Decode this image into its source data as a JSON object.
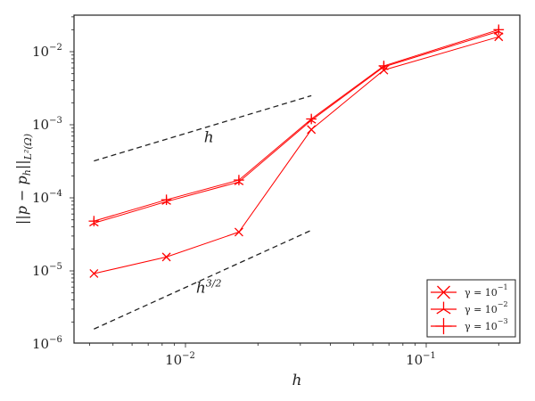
{
  "chart_data": {
    "type": "line",
    "title": "",
    "xlabel": "h",
    "ylabel": "||p − p_h||_{L²(Ω)}",
    "xscale": "log",
    "yscale": "log",
    "xlim": [
      0.0033,
      0.27
    ],
    "ylim": [
      1e-06,
      0.03
    ],
    "grid": false,
    "legend_position": "lower right",
    "x_ticks": [
      {
        "value": 0.01,
        "base": "10",
        "exp": "−2"
      },
      {
        "value": 0.1,
        "base": "10",
        "exp": "−1"
      }
    ],
    "y_ticks": [
      {
        "value": 1e-06,
        "base": "10",
        "exp": "−6"
      },
      {
        "value": 1e-05,
        "base": "10",
        "exp": "−5"
      },
      {
        "value": 0.0001,
        "base": "10",
        "exp": "−4"
      },
      {
        "value": 0.001,
        "base": "10",
        "exp": "−3"
      },
      {
        "value": 0.01,
        "base": "10",
        "exp": "−2"
      }
    ],
    "x": [
      0.004167,
      0.008333,
      0.01667,
      0.03333,
      0.06667,
      0.2
    ],
    "series": [
      {
        "name": "γ = 10^-1",
        "label_base": "γ = 10",
        "label_exp": "−1",
        "marker": "x",
        "color": "#ff0000",
        "values": [
          9.2e-06,
          1.55e-05,
          3.4e-05,
          0.00086,
          0.0056,
          0.016
        ]
      },
      {
        "name": "γ = 10^-2",
        "label_base": "γ = 10",
        "label_exp": "−2",
        "marker": "tri",
        "color": "#ff0000",
        "values": [
          4.5e-05,
          8.9e-05,
          0.000165,
          0.00115,
          0.0062,
          0.019
        ]
      },
      {
        "name": "γ = 10^-3",
        "label_base": "γ = 10",
        "label_exp": "−3",
        "marker": "plus",
        "color": "#ff0000",
        "values": [
          4.8e-05,
          9.4e-05,
          0.000175,
          0.0012,
          0.0064,
          0.02
        ]
      }
    ],
    "reference_lines": [
      {
        "label": "h",
        "label_base": "h",
        "label_exp": "",
        "style": "dashed",
        "color": "#222222",
        "x": [
          0.004167,
          0.03333
        ],
        "y": [
          0.00032,
          0.0025
        ],
        "label_pos": [
          0.0125,
          0.00058
        ]
      },
      {
        "label": "h^{3/2}",
        "label_base": "h",
        "label_exp": "3/2",
        "style": "dashed",
        "color": "#222222",
        "x": [
          0.004167,
          0.03333
        ],
        "y": [
          1.6e-06,
          3.6e-05
        ],
        "label_pos": [
          0.0125,
          5e-06
        ]
      }
    ]
  }
}
